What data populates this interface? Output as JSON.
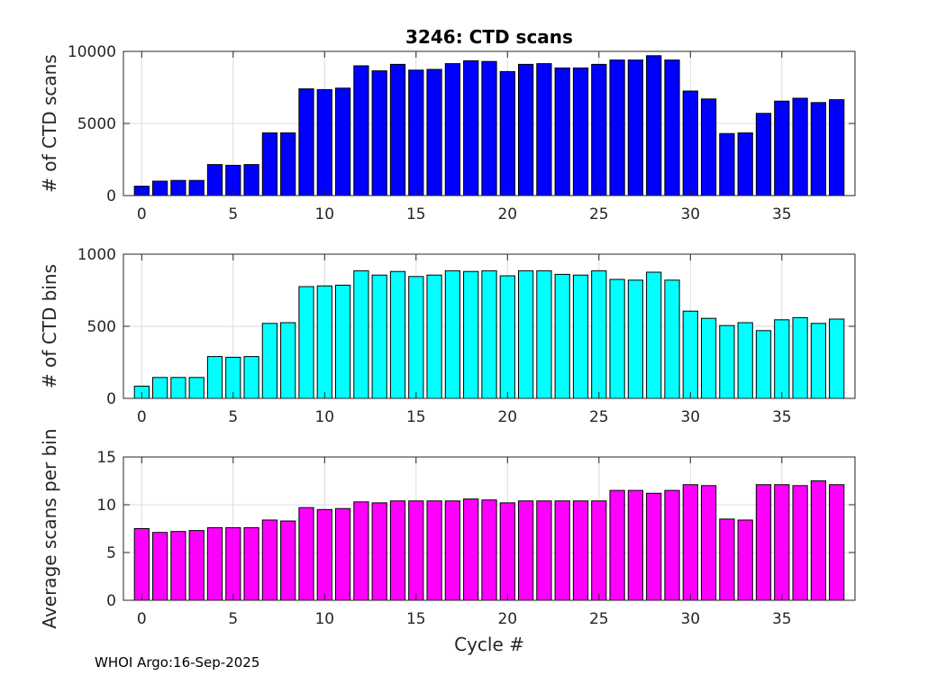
{
  "footer": "WHOI Argo:16-Sep-2025",
  "chart_data": [
    {
      "type": "bar",
      "title": "3246: CTD scans",
      "xlabel": "",
      "ylabel": "# of CTD scans",
      "color": "#0000ff",
      "xlim": [
        -1,
        39
      ],
      "ylim": [
        0,
        10000
      ],
      "xticks": [
        0,
        5,
        10,
        15,
        20,
        25,
        30,
        35
      ],
      "yticks": [
        0,
        5000,
        10000
      ],
      "grid": true,
      "x": [
        0,
        1,
        2,
        3,
        4,
        5,
        6,
        7,
        8,
        9,
        10,
        11,
        12,
        13,
        14,
        15,
        16,
        17,
        18,
        19,
        20,
        21,
        22,
        23,
        24,
        25,
        26,
        27,
        28,
        29,
        30,
        31,
        32,
        33,
        34,
        35,
        36,
        37,
        38
      ],
      "values": [
        650,
        1000,
        1050,
        1050,
        2150,
        2100,
        2150,
        4350,
        4350,
        7400,
        7350,
        7450,
        9000,
        8650,
        9100,
        8700,
        8750,
        9150,
        9350,
        9300,
        8600,
        9100,
        9150,
        8850,
        8850,
        9100,
        9400,
        9400,
        9700,
        9400,
        7250,
        6700,
        4300,
        4350,
        5700,
        6550,
        6750,
        6450,
        6650
      ]
    },
    {
      "type": "bar",
      "title": "",
      "xlabel": "",
      "ylabel": "# of CTD bins",
      "color": "#00ffff",
      "xlim": [
        -1,
        39
      ],
      "ylim": [
        0,
        1000
      ],
      "xticks": [
        0,
        5,
        10,
        15,
        20,
        25,
        30,
        35
      ],
      "yticks": [
        0,
        500,
        1000
      ],
      "grid": true,
      "x": [
        0,
        1,
        2,
        3,
        4,
        5,
        6,
        7,
        8,
        9,
        10,
        11,
        12,
        13,
        14,
        15,
        16,
        17,
        18,
        19,
        20,
        21,
        22,
        23,
        24,
        25,
        26,
        27,
        28,
        29,
        30,
        31,
        32,
        33,
        34,
        35,
        36,
        37,
        38
      ],
      "values": [
        85,
        145,
        145,
        145,
        290,
        285,
        290,
        520,
        525,
        775,
        780,
        785,
        885,
        855,
        880,
        845,
        855,
        885,
        880,
        885,
        850,
        885,
        885,
        860,
        855,
        885,
        825,
        820,
        875,
        820,
        605,
        555,
        505,
        525,
        470,
        545,
        560,
        520,
        550
      ]
    },
    {
      "type": "bar",
      "title": "",
      "xlabel": "Cycle #",
      "ylabel": "Average scans per bin",
      "color": "#ff00ff",
      "xlim": [
        -1,
        39
      ],
      "ylim": [
        0,
        15
      ],
      "xticks": [
        0,
        5,
        10,
        15,
        20,
        25,
        30,
        35
      ],
      "yticks": [
        0,
        5,
        10,
        15
      ],
      "grid": true,
      "x": [
        0,
        1,
        2,
        3,
        4,
        5,
        6,
        7,
        8,
        9,
        10,
        11,
        12,
        13,
        14,
        15,
        16,
        17,
        18,
        19,
        20,
        21,
        22,
        23,
        24,
        25,
        26,
        27,
        28,
        29,
        30,
        31,
        32,
        33,
        34,
        35,
        36,
        37,
        38
      ],
      "values": [
        7.5,
        7.1,
        7.2,
        7.3,
        7.6,
        7.6,
        7.6,
        8.4,
        8.3,
        9.7,
        9.5,
        9.6,
        10.3,
        10.2,
        10.4,
        10.4,
        10.4,
        10.4,
        10.6,
        10.5,
        10.2,
        10.4,
        10.4,
        10.4,
        10.4,
        10.4,
        11.5,
        11.5,
        11.2,
        11.5,
        12.1,
        12.0,
        8.5,
        8.4,
        12.1,
        12.1,
        12.0,
        12.5,
        12.1
      ]
    }
  ]
}
